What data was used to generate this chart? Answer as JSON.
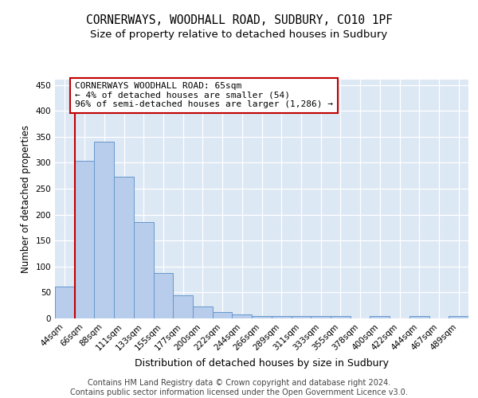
{
  "title_line1": "CORNERWAYS, WOODHALL ROAD, SUDBURY, CO10 1PF",
  "title_line2": "Size of property relative to detached houses in Sudbury",
  "xlabel": "Distribution of detached houses by size in Sudbury",
  "ylabel": "Number of detached properties",
  "bar_labels": [
    "44sqm",
    "66sqm",
    "88sqm",
    "111sqm",
    "133sqm",
    "155sqm",
    "177sqm",
    "200sqm",
    "222sqm",
    "244sqm",
    "266sqm",
    "289sqm",
    "311sqm",
    "333sqm",
    "355sqm",
    "378sqm",
    "400sqm",
    "422sqm",
    "444sqm",
    "467sqm",
    "489sqm"
  ],
  "bar_values": [
    62,
    303,
    340,
    273,
    185,
    88,
    45,
    23,
    13,
    8,
    5,
    5,
    5,
    5,
    4,
    0,
    4,
    0,
    4,
    0,
    4
  ],
  "bar_color": "#b8cceb",
  "bar_edge_color": "#6699cc",
  "annotation_line1": "CORNERWAYS WOODHALL ROAD: 65sqm",
  "annotation_line2": "← 4% of detached houses are smaller (54)",
  "annotation_line3": "96% of semi-detached houses are larger (1,286) →",
  "vline_color": "#c00000",
  "annotation_box_edge_color": "#c00000",
  "ylim": [
    0,
    460
  ],
  "yticks": [
    0,
    50,
    100,
    150,
    200,
    250,
    300,
    350,
    400,
    450
  ],
  "footer_line1": "Contains HM Land Registry data © Crown copyright and database right 2024.",
  "footer_line2": "Contains public sector information licensed under the Open Government Licence v3.0.",
  "plot_background": "#dde8f5",
  "title_fontsize": 10.5,
  "subtitle_fontsize": 9.5,
  "ylabel_fontsize": 8.5,
  "xlabel_fontsize": 9,
  "tick_fontsize": 7.5,
  "footer_fontsize": 7,
  "annotation_fontsize": 8
}
